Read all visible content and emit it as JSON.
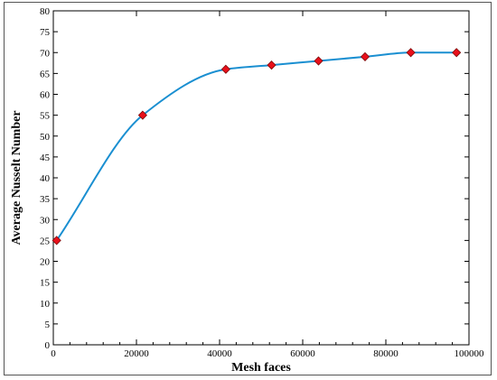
{
  "chart_data": {
    "type": "line",
    "title": "",
    "xlabel": "Mesh faces",
    "ylabel": "Average Nusselt Number",
    "xlim": [
      0,
      100000
    ],
    "ylim": [
      0,
      80
    ],
    "xticks": [
      0,
      20000,
      40000,
      60000,
      80000,
      100000
    ],
    "yticks": [
      0,
      5,
      10,
      15,
      20,
      25,
      30,
      35,
      40,
      45,
      50,
      55,
      60,
      65,
      70,
      75,
      80
    ],
    "grid": false,
    "series": [
      {
        "marker": "diamond",
        "line_color": "#1a8fd1",
        "marker_color": "#e8101b",
        "x": [
          800,
          21500,
          41500,
          52500,
          63800,
          75000,
          86000,
          97000
        ],
        "y": [
          25,
          55,
          66,
          67,
          68,
          69,
          70,
          70
        ]
      }
    ]
  }
}
